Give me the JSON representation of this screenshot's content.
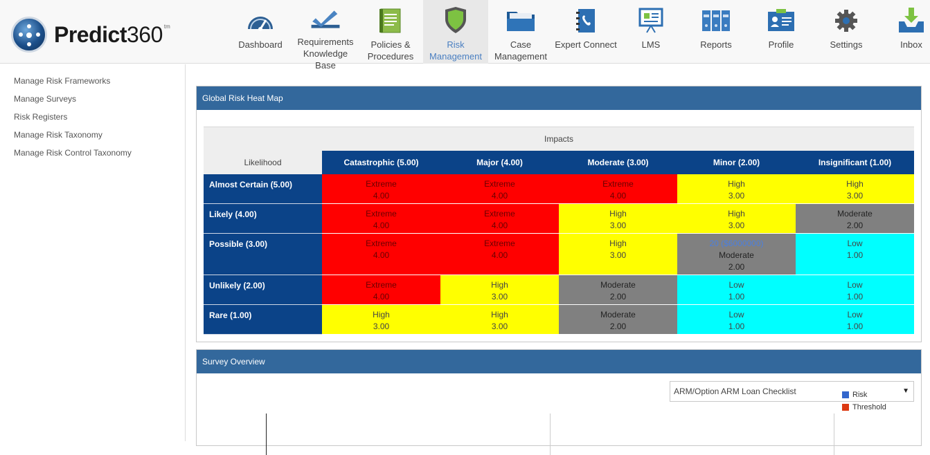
{
  "brand": {
    "name_bold": "Predict",
    "name_num": "360",
    "tm": "tm"
  },
  "nav": [
    {
      "label": "Dashboard",
      "icon": "dashboard-icon",
      "width": 94
    },
    {
      "label": "Requirements\nKnowledge Base",
      "icon": "checkmark-icon",
      "width": 94
    },
    {
      "label": "Policies &\nProcedures",
      "icon": "document-icon",
      "width": 94
    },
    {
      "label": "Risk\nManagement",
      "icon": "shield-icon",
      "width": 94,
      "active": true
    },
    {
      "label": "Case\nManagement",
      "icon": "folder-icon",
      "width": 94
    },
    {
      "label": "Expert Connect",
      "icon": "phone-book-icon",
      "width": 94
    },
    {
      "label": "LMS",
      "icon": "presentation-board-icon",
      "width": 94
    },
    {
      "label": "Reports",
      "icon": "binders-icon",
      "width": 94
    },
    {
      "label": "Profile",
      "icon": "id-card-icon",
      "width": 94
    },
    {
      "label": "Settings",
      "icon": "gear-icon",
      "width": 94
    },
    {
      "label": "Inbox",
      "icon": "inbox-icon",
      "width": 94
    }
  ],
  "sidebar": {
    "items": [
      {
        "label": "Manage Risk Frameworks"
      },
      {
        "label": "Manage Surveys"
      },
      {
        "label": "Risk Registers"
      },
      {
        "label": "Manage Risk Taxonomy"
      },
      {
        "label": "Manage Risk Control Taxonomy"
      }
    ]
  },
  "heatmap": {
    "title": "Global Risk Heat Map",
    "impacts_label": "Impacts",
    "likelihood_label": "Likelihood",
    "impacts": [
      "Catastrophic (5.00)",
      "Major (4.00)",
      "Moderate (3.00)",
      "Minor (2.00)",
      "Insignificant (1.00)"
    ],
    "colors": {
      "Extreme": "#ff0000",
      "High": "#ffff00",
      "Moderate": "#808080",
      "Low": "#00ffff"
    },
    "rows": [
      {
        "likelihood": "Almost Certain (5.00)",
        "cells": [
          {
            "level": "Extreme",
            "score": "4.00"
          },
          {
            "level": "Extreme",
            "score": "4.00"
          },
          {
            "level": "Extreme",
            "score": "4.00"
          },
          {
            "level": "High",
            "score": "3.00"
          },
          {
            "level": "High",
            "score": "3.00"
          }
        ]
      },
      {
        "likelihood": "Likely (4.00)",
        "cells": [
          {
            "level": "Extreme",
            "score": "4.00"
          },
          {
            "level": "Extreme",
            "score": "4.00"
          },
          {
            "level": "High",
            "score": "3.00"
          },
          {
            "level": "High",
            "score": "3.00"
          },
          {
            "level": "Moderate",
            "score": "2.00"
          }
        ]
      },
      {
        "likelihood": "Possible (3.00)",
        "cells": [
          {
            "level": "Extreme",
            "score": "4.00"
          },
          {
            "level": "Extreme",
            "score": "4.00"
          },
          {
            "level": "High",
            "score": "3.00"
          },
          {
            "level": "Moderate",
            "score": "2.00",
            "link": "20 ($6000000)"
          },
          {
            "level": "Low",
            "score": "1.00"
          }
        ]
      },
      {
        "likelihood": "Unlikely (2.00)",
        "cells": [
          {
            "level": "Extreme",
            "score": "4.00"
          },
          {
            "level": "High",
            "score": "3.00"
          },
          {
            "level": "Moderate",
            "score": "2.00"
          },
          {
            "level": "Low",
            "score": "1.00"
          },
          {
            "level": "Low",
            "score": "1.00"
          }
        ]
      },
      {
        "likelihood": "Rare (1.00)",
        "cells": [
          {
            "level": "High",
            "score": "3.00"
          },
          {
            "level": "High",
            "score": "3.00"
          },
          {
            "level": "Moderate",
            "score": "2.00"
          },
          {
            "level": "Low",
            "score": "1.00"
          },
          {
            "level": "Low",
            "score": "1.00"
          }
        ]
      }
    ]
  },
  "survey": {
    "title": "Survey Overview",
    "selected_survey": "ARM/Option ARM Loan Checklist",
    "legend": [
      {
        "label": "Risk",
        "color": "#3366cc"
      },
      {
        "label": "Threshold",
        "color": "#dc3912"
      }
    ]
  }
}
